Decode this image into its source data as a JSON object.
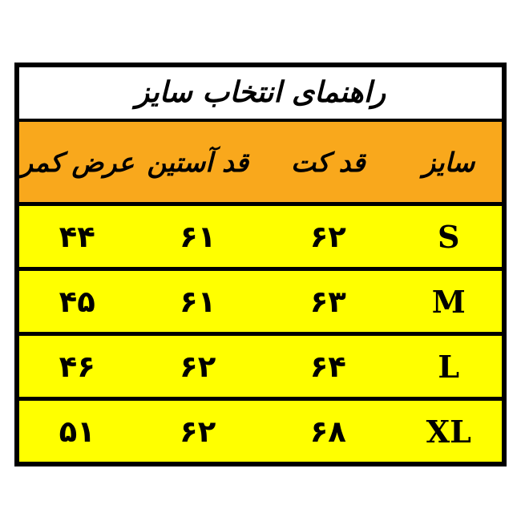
{
  "chart_data": {
    "type": "table",
    "title": "راهنمای انتخاب سایز",
    "columns": [
      "سایز",
      "قد کت",
      "قد آستین",
      "عرض کمر"
    ],
    "rows": [
      {
        "size": "S",
        "jacket_length": 62,
        "sleeve_length": 61,
        "waist_width": 44
      },
      {
        "size": "M",
        "jacket_length": 63,
        "sleeve_length": 61,
        "waist_width": 45
      },
      {
        "size": "L",
        "jacket_length": 64,
        "sleeve_length": 62,
        "waist_width": 46
      },
      {
        "size": "XL",
        "jacket_length": 68,
        "sleeve_length": 62,
        "waist_width": 51
      }
    ],
    "digit_style": "persian-eastern-arabic",
    "layout_hints": {
      "direction": "rtl",
      "grid": "horizontal-dividers-only"
    }
  },
  "table": {
    "title": "راهنمای انتخاب سایز",
    "columns": [
      {
        "key": "size",
        "label": "سایز"
      },
      {
        "key": "jacket_length",
        "label": "قد کت"
      },
      {
        "key": "sleeve_length",
        "label": "قد آستین"
      },
      {
        "key": "waist_width",
        "label": "عرض کمر"
      }
    ],
    "rows": [
      {
        "size": "S",
        "jacket_length": "۶۲",
        "sleeve_length": "۶۱",
        "waist_width": "۴۴"
      },
      {
        "size": "M",
        "jacket_length": "۶۳",
        "sleeve_length": "۶۱",
        "waist_width": "۴۵"
      },
      {
        "size": "L",
        "jacket_length": "۶۴",
        "sleeve_length": "۶۲",
        "waist_width": "۴۶"
      },
      {
        "size": "XL",
        "jacket_length": "۶۸",
        "sleeve_length": "۶۲",
        "waist_width": "۵۱"
      }
    ],
    "colors": {
      "title_bg": "#ffffff",
      "header_bg": "#f9a81c",
      "row_bg": "#ffff00",
      "border": "#000000",
      "text": "#000000"
    }
  }
}
